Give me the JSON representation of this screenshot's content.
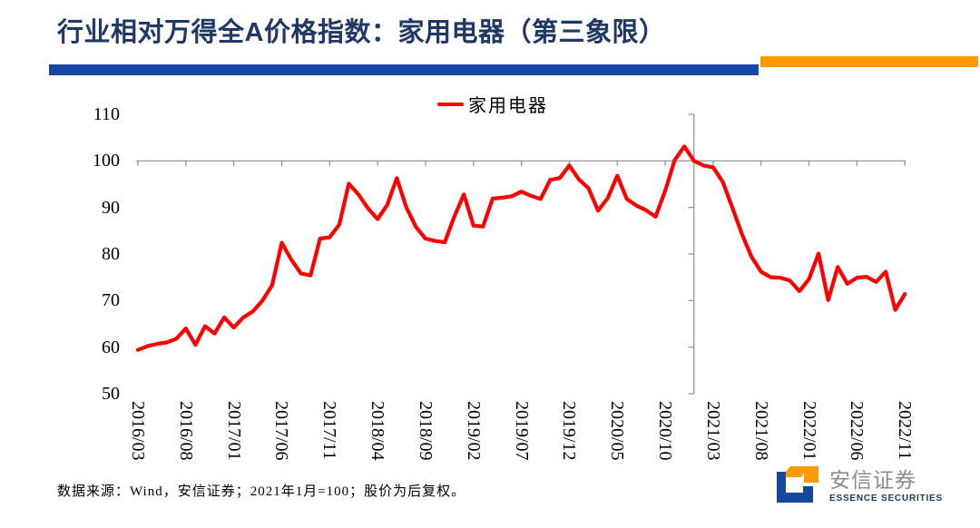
{
  "header": {
    "title": "行业相对万得全A价格指数：家用电器（第三象限）",
    "underline_blue": "#17479E",
    "underline_orange": "#FF9900"
  },
  "legend": {
    "label": "家用电器",
    "line_color": "#FF0000"
  },
  "footer": {
    "source_note": "数据来源：Wind，安信证券；2021年1月=100；股价为后复权。"
  },
  "logo": {
    "cn": "安信证券",
    "en": "ESSENCE SECURITIES",
    "blue": "#17479E",
    "orange": "#FF9900"
  },
  "chart_data": {
    "type": "line",
    "title": "行业相对万得全A价格指数：家用电器（第三象限）",
    "series_name": "家用电器",
    "line_color": "#FF0000",
    "axis_color": "#8C8C8C",
    "frequency": "monthly",
    "x_start": "2016/03",
    "x_end": "2022/11",
    "x_tick_labels": [
      "2016/03",
      "2016/08",
      "2017/01",
      "2017/06",
      "2017/11",
      "2018/04",
      "2018/09",
      "2019/02",
      "2019/07",
      "2019/12",
      "2020/05",
      "2020/10",
      "2021/03",
      "2021/08",
      "2022/01",
      "2022/06",
      "2022/11"
    ],
    "y_ticks": [
      110,
      100,
      90,
      80,
      70,
      60,
      50
    ],
    "ylim": [
      50,
      110
    ],
    "baseline_value": 100,
    "vline_at": "2021/01",
    "values": [
      59.4,
      60.2,
      60.7,
      61.0,
      61.8,
      64.0,
      60.5,
      64.5,
      62.9,
      66.4,
      64.2,
      66.4,
      67.7,
      70.0,
      73.3,
      82.4,
      78.8,
      75.8,
      75.4,
      83.3,
      83.6,
      86.3,
      95.1,
      92.8,
      89.8,
      87.5,
      90.5,
      96.3,
      90.0,
      85.8,
      83.3,
      82.8,
      82.5,
      88.0,
      92.8,
      86.1,
      85.9,
      91.9,
      92.1,
      92.4,
      93.4,
      92.5,
      91.8,
      95.9,
      96.3,
      99.0,
      96.0,
      94.1,
      89.3,
      92.0,
      96.8,
      91.8,
      90.4,
      89.4,
      88.0,
      93.6,
      100.2,
      103.1,
      100.0,
      99.0,
      98.6,
      95.5,
      90.0,
      84.3,
      79.4,
      76.2,
      75.0,
      74.9,
      74.3,
      72.0,
      74.6,
      80.1,
      70.1,
      77.2,
      73.6,
      74.9,
      75.1,
      74.0,
      76.2,
      68.0,
      71.4
    ]
  }
}
